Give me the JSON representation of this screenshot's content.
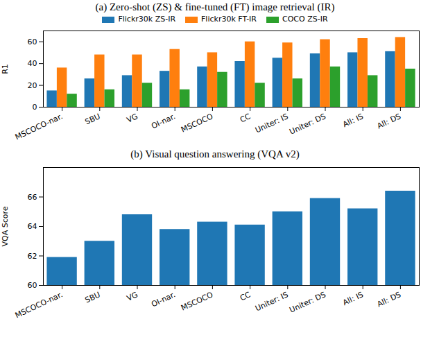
{
  "chart_data": [
    {
      "type": "bar",
      "title": "(a) Zero-shot (ZS) & fine-tuned (FT) image retrieval (IR)",
      "y_label": "R1",
      "categories": [
        "MSCOCO-nar.",
        "SBU",
        "VG",
        "OI-nar.",
        "MSCOCO",
        "CC",
        "Uniter: IS",
        "Uniter: DS",
        "All: IS",
        "All: DS"
      ],
      "series": [
        {
          "name": "Flickr30k ZS-IR",
          "color": "#1f77b4",
          "values": [
            15,
            26,
            29,
            33,
            37,
            42,
            45,
            49,
            50,
            51
          ]
        },
        {
          "name": "Flickr30k FT-IR",
          "color": "#ff7f0e",
          "values": [
            36,
            48,
            48,
            53,
            50,
            60,
            59,
            62,
            63,
            64
          ]
        },
        {
          "name": "COCO ZS-IR",
          "color": "#2ca02c",
          "values": [
            12,
            16,
            22,
            16,
            32,
            22,
            26,
            37,
            29,
            35
          ]
        }
      ],
      "ylim": [
        0,
        70
      ],
      "yticks": [
        0,
        20,
        40,
        60
      ],
      "grid": false,
      "legend": "top"
    },
    {
      "type": "bar",
      "title": "(b) Visual question answering (VQA v2)",
      "y_label": "VQA Score",
      "categories": [
        "MSCOCO-nar.",
        "SBU",
        "VG",
        "OI-nar.",
        "MSCOCO",
        "CC",
        "Uniter: IS",
        "Uniter: DS",
        "All: IS",
        "All: DS"
      ],
      "values": [
        61.9,
        63.0,
        64.8,
        63.8,
        64.3,
        64.1,
        65.0,
        65.9,
        65.2,
        66.4
      ],
      "color": "#1f77b4",
      "ylim": [
        60,
        68
      ],
      "yticks": [
        60,
        62,
        64,
        66
      ],
      "grid": false
    }
  ]
}
